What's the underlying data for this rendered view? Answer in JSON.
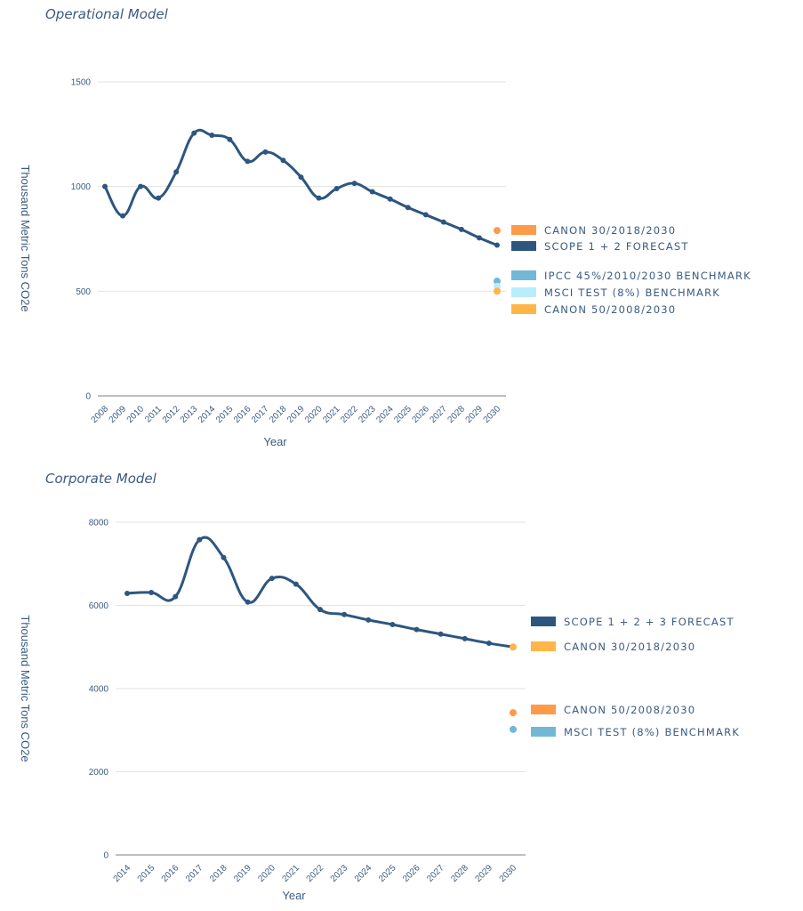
{
  "chart_data": [
    {
      "type": "line",
      "title": "Operational Model",
      "xlabel": "Year",
      "ylabel": "Thousand Metric Tons CO2e",
      "ylim": [
        0,
        1500
      ],
      "yticks": [
        0,
        500,
        1000,
        1500
      ],
      "grid": true,
      "legend_position": "right",
      "x": [
        "2008",
        "2009",
        "2010",
        "2011",
        "2012",
        "2013",
        "2014",
        "2015",
        "2016",
        "2017",
        "2018",
        "2019",
        "2020",
        "2021",
        "2022",
        "2023",
        "2024",
        "2025",
        "2026",
        "2027",
        "2028",
        "2029",
        "2030"
      ],
      "series": [
        {
          "name": "SCOPE 1 + 2 FORECAST",
          "color": "#2d567f",
          "values": [
            1000,
            860,
            1000,
            945,
            1070,
            1255,
            1245,
            1225,
            1120,
            1165,
            1125,
            1045,
            945,
            990,
            1015,
            975,
            940,
            900,
            865,
            830,
            795,
            755,
            720
          ]
        }
      ],
      "points": [
        {
          "name": "CANON 30/2018/2030",
          "color": "#ff9a48",
          "x": "2030",
          "value": 790
        },
        {
          "name": "IPCC 45%/2010/2030 BENCHMARK",
          "color": "#72b8d6",
          "x": "2030",
          "value": 548
        },
        {
          "name": "MSCI TEST (8%) BENCHMARK",
          "color": "#b8eefb",
          "x": "2030",
          "value": 523
        },
        {
          "name": "CANON 50/2008/2030",
          "color": "#ffb547",
          "x": "2030",
          "value": 500
        }
      ],
      "legend": [
        {
          "label": "CANON 30/2018/2030",
          "color": "#ff9a48"
        },
        {
          "label": "SCOPE 1 + 2 FORECAST",
          "color": "#2d567f"
        },
        {
          "label": "IPCC 45%/2010/2030 BENCHMARK",
          "color": "#72b8d6"
        },
        {
          "label": "MSCI TEST (8%) BENCHMARK",
          "color": "#b8eefb"
        },
        {
          "label": "CANON 50/2008/2030",
          "color": "#ffb547"
        }
      ]
    },
    {
      "type": "line",
      "title": "Corporate Model",
      "xlabel": "Year",
      "ylabel": "Thousand Metric Tons CO2e",
      "ylim": [
        0,
        8000
      ],
      "yticks": [
        0,
        2000,
        4000,
        6000,
        8000
      ],
      "grid": true,
      "legend_position": "right",
      "x": [
        "2014",
        "2015",
        "2016",
        "2017",
        "2018",
        "2019",
        "2020",
        "2021",
        "2022",
        "2023",
        "2024",
        "2025",
        "2026",
        "2027",
        "2028",
        "2029",
        "2030"
      ],
      "series": [
        {
          "name": "SCOPE 1 + 2 + 3 FORECAST",
          "color": "#2d567f",
          "values": [
            6290,
            6310,
            6210,
            7580,
            7150,
            6080,
            6650,
            6510,
            5900,
            5780,
            5650,
            5540,
            5420,
            5310,
            5200,
            5090,
            5000
          ]
        }
      ],
      "points": [
        {
          "name": "CANON 30/2018/2030",
          "color": "#ffb547",
          "x": "2030",
          "value": 5000
        },
        {
          "name": "CANON 50/2008/2030",
          "color": "#ff9a48",
          "x": "2030",
          "value": 3420
        },
        {
          "name": "MSCI TEST (8%) BENCHMARK",
          "color": "#72b8d6",
          "x": "2030",
          "value": 3020
        }
      ],
      "legend": [
        {
          "label": "SCOPE 1 + 2 + 3 FORECAST",
          "color": "#2d567f"
        },
        {
          "label": "CANON 30/2018/2030",
          "color": "#ffb547"
        },
        {
          "label": "CANON 50/2008/2030",
          "color": "#ff9a48"
        },
        {
          "label": "MSCI TEST (8%) BENCHMARK",
          "color": "#72b8d6"
        }
      ]
    }
  ]
}
